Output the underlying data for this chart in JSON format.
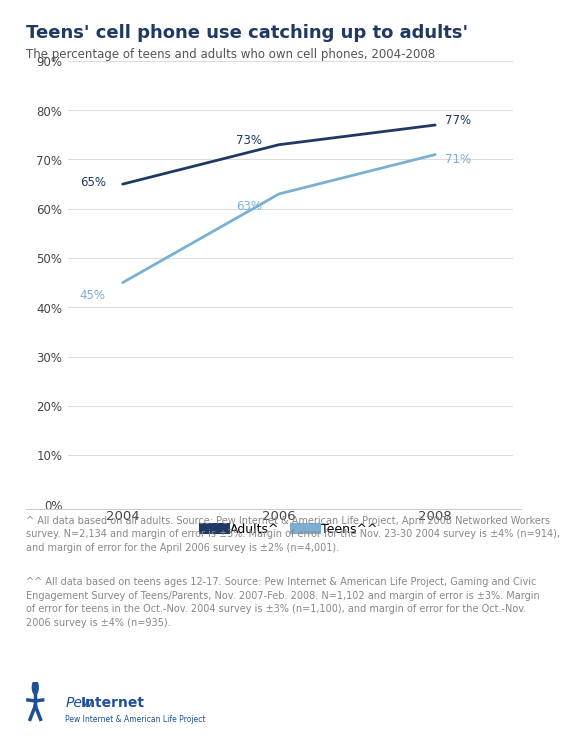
{
  "title": "Teens' cell phone use catching up to adults'",
  "subtitle": "The percentage of teens and adults who own cell phones, 2004-2008",
  "years": [
    2004,
    2006,
    2008
  ],
  "adults": [
    0.65,
    0.73,
    0.77
  ],
  "teens": [
    0.45,
    0.63,
    0.71
  ],
  "adults_labels": [
    "65%",
    "73%",
    "77%"
  ],
  "teens_labels": [
    "45%",
    "63%",
    "71%"
  ],
  "adults_color": "#1f3864",
  "teens_color": "#7bafd4",
  "title_color": "#1f3864",
  "subtitle_color": "#555555",
  "note_color": "#888888",
  "ylim": [
    0,
    0.9
  ],
  "yticks": [
    0.0,
    0.1,
    0.2,
    0.3,
    0.4,
    0.5,
    0.6,
    0.7,
    0.8,
    0.9
  ],
  "ytick_labels": [
    "0%",
    "10%",
    "20%",
    "30%",
    "40%",
    "50%",
    "60%",
    "70%",
    "80%",
    "90%"
  ],
  "legend_labels": [
    "Adults^",
    "Teens^^"
  ],
  "footnote1": "^ All data based on all adults. Source: Pew Internet & American Life Project, April 2008 Networked Workers\nsurvey. N=2,134 and margin of error is ±3%. Margin of error for the Nov. 23-30 2004 survey is ±4% (n=914),\nand margin of error for the April 2006 survey is ±2% (n=4,001).",
  "footnote2": "^^ All data based on teens ages 12-17. Source: Pew Internet & American Life Project, Gaming and Civic\nEngagement Survey of Teens/Parents, Nov. 2007-Feb. 2008. N=1,102 and margin of error is ±3%. Margin\nof error for teens in the Oct.-Nov. 2004 survey is ±3% (n=1,100), and margin of error for the Oct.-Nov.\n2006 survey is ±4% (n=935).",
  "background_color": "#ffffff",
  "plot_bg_color": "#ffffff",
  "grid_color": "#dddddd",
  "top_border_color": "#1f5096",
  "pew_blue": "#1f5096"
}
